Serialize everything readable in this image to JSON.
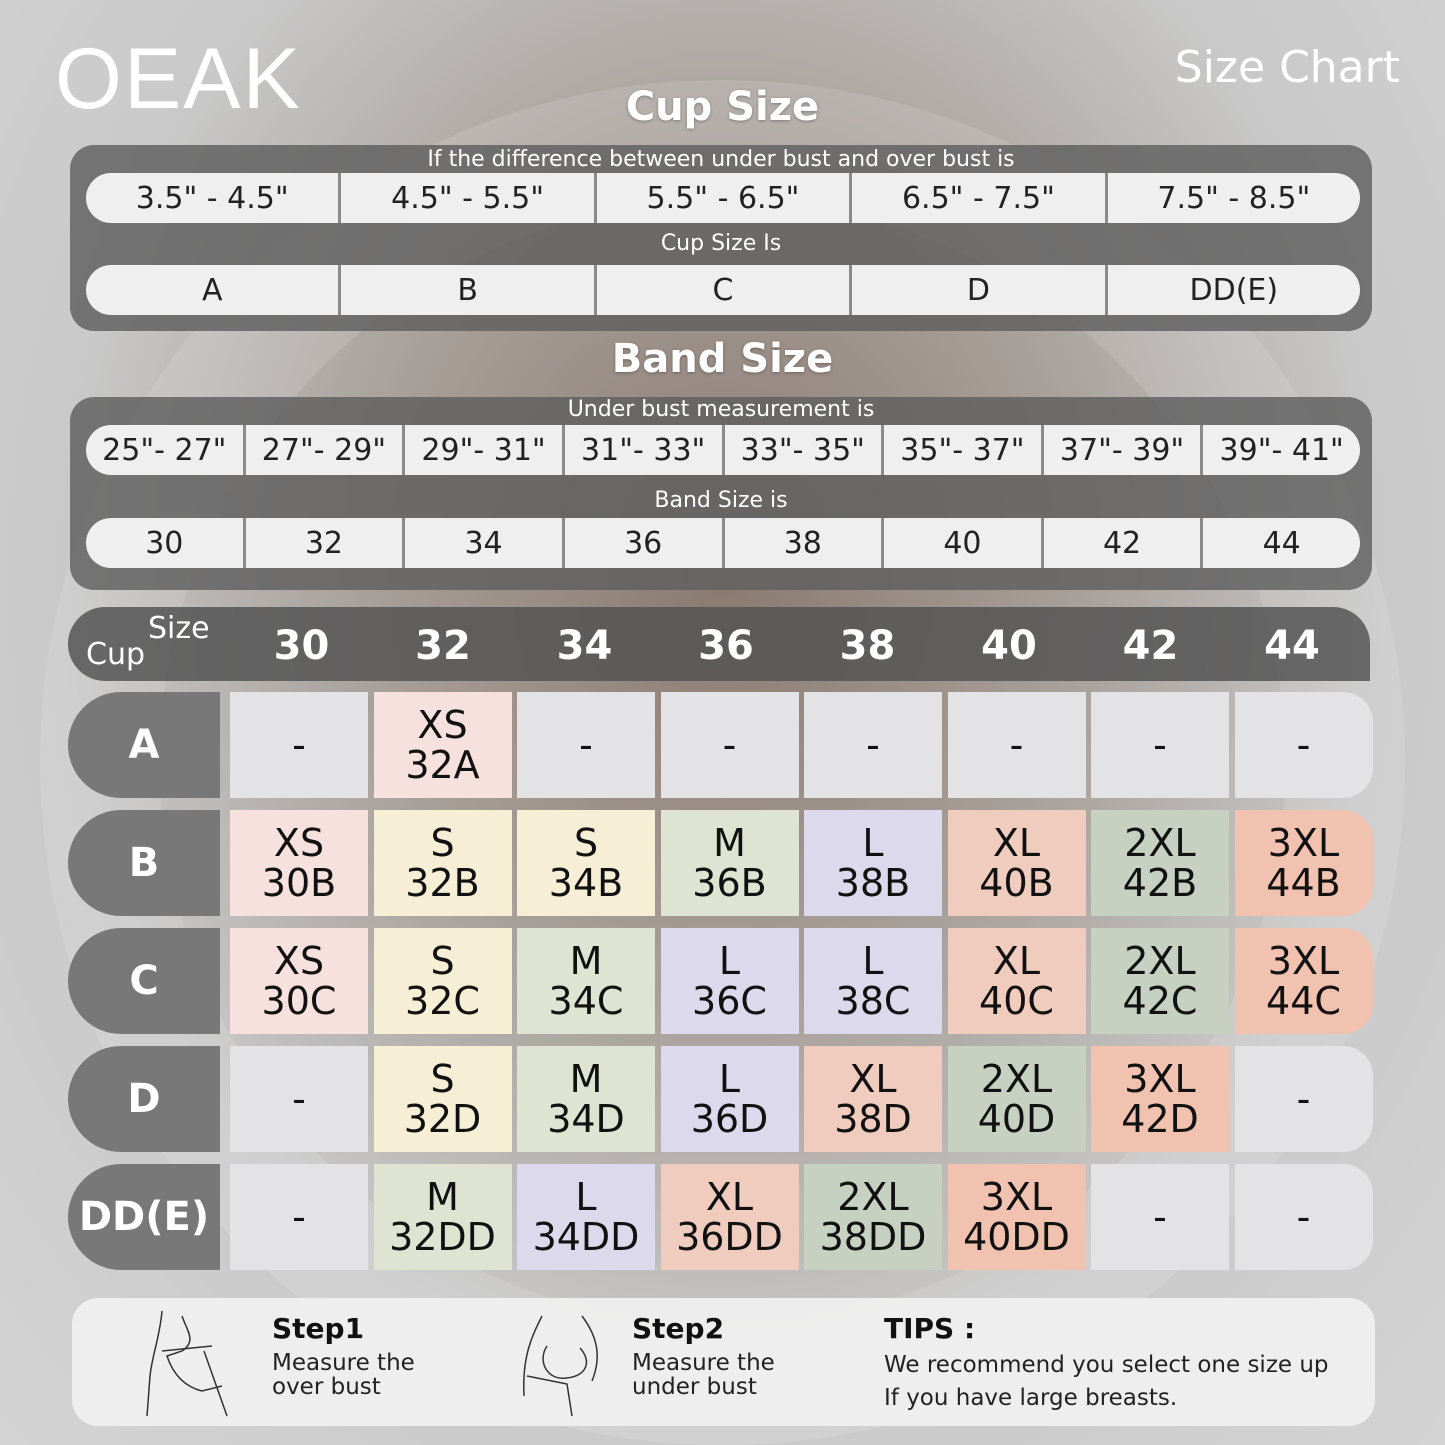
{
  "brand": "OEAK",
  "chart_title": "Size Chart",
  "cup_section": {
    "title": "Cup Size",
    "difference_label": "If the  difference between under bust and over bust is",
    "differences": [
      "3.5\" -  4.5\"",
      "4.5\" -  5.5\"",
      "5.5\" -  6.5\"",
      "6.5\" -  7.5\"",
      "7.5\" -  8.5\""
    ],
    "cup_label": "Cup Size Is",
    "cups": [
      "A",
      "B",
      "C",
      "D",
      "DD(E)"
    ]
  },
  "band_section": {
    "title": "Band Size",
    "under_label": "Under bust measurement is",
    "ranges": [
      "25\"- 27\"",
      "27\"- 29\"",
      "29\"- 31\"",
      "31\"- 33\"",
      "33\"- 35\"",
      "35\"- 37\"",
      "37\"- 39\"",
      "39\"- 41\""
    ],
    "band_label": "Band Size is",
    "bands": [
      "30",
      "32",
      "34",
      "36",
      "38",
      "40",
      "42",
      "44"
    ]
  },
  "grid": {
    "corner_size": "Size",
    "corner_cup": "Cup",
    "bands": [
      "30",
      "32",
      "34",
      "36",
      "38",
      "40",
      "42",
      "44"
    ],
    "size_colors": {
      "-": "#e3e3e5",
      "XS": "#f7e1df",
      "S": "#f6efd5",
      "M": "#dfe4d2",
      "L": "#dcd9ec",
      "XL": "#f0ccbe",
      "2XL": "#c7d1c1",
      "3XL": "#f1c2af"
    },
    "rows": [
      {
        "cup": "A",
        "cells": [
          [
            "-",
            ""
          ],
          [
            "XS",
            "32A"
          ],
          [
            "-",
            ""
          ],
          [
            "-",
            ""
          ],
          [
            "-",
            ""
          ],
          [
            "-",
            ""
          ],
          [
            "-",
            ""
          ],
          [
            "-",
            ""
          ]
        ]
      },
      {
        "cup": "B",
        "cells": [
          [
            "XS",
            "30B"
          ],
          [
            "S",
            "32B"
          ],
          [
            "S",
            "34B"
          ],
          [
            "M",
            "36B"
          ],
          [
            "L",
            "38B"
          ],
          [
            "XL",
            "40B"
          ],
          [
            "2XL",
            "42B"
          ],
          [
            "3XL",
            "44B"
          ]
        ]
      },
      {
        "cup": "C",
        "cells": [
          [
            "XS",
            "30C"
          ],
          [
            "S",
            "32C"
          ],
          [
            "M",
            "34C"
          ],
          [
            "L",
            "36C"
          ],
          [
            "L",
            "38C"
          ],
          [
            "XL",
            "40C"
          ],
          [
            "2XL",
            "42C"
          ],
          [
            "3XL",
            "44C"
          ]
        ]
      },
      {
        "cup": "D",
        "cells": [
          [
            "-",
            ""
          ],
          [
            "S",
            "32D"
          ],
          [
            "M",
            "34D"
          ],
          [
            "L",
            "36D"
          ],
          [
            "XL",
            "38D"
          ],
          [
            "2XL",
            "40D"
          ],
          [
            "3XL",
            "42D"
          ],
          [
            "-",
            ""
          ]
        ]
      },
      {
        "cup": "DD(E)",
        "cells": [
          [
            "-",
            ""
          ],
          [
            "M",
            "32DD"
          ],
          [
            "L",
            "34DD"
          ],
          [
            "XL",
            "36DD"
          ],
          [
            "2XL",
            "38DD"
          ],
          [
            "3XL",
            "40DD"
          ],
          [
            "-",
            ""
          ],
          [
            "-",
            ""
          ]
        ]
      }
    ]
  },
  "footer": {
    "step1": {
      "title": "Step1",
      "line1": "Measure the",
      "line2": "over bust"
    },
    "step2": {
      "title": "Step2",
      "line1": "Measure the",
      "line2": "under bust"
    },
    "tips": {
      "title": "TIPS :",
      "line1": "We recommend you select one size up",
      "line2": "If you have large breasts."
    }
  }
}
